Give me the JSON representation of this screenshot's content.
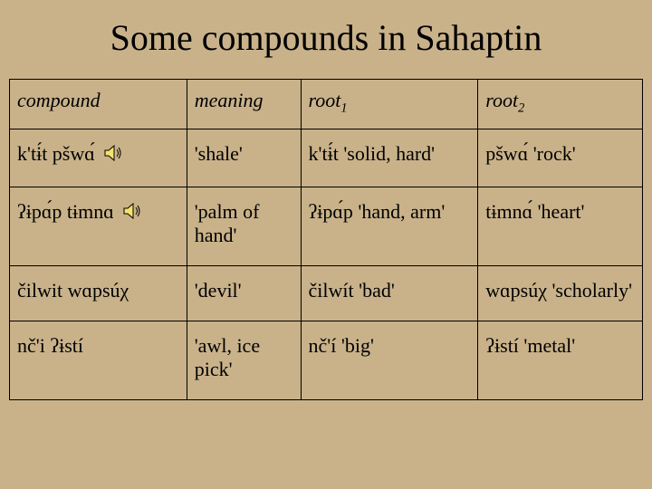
{
  "title": "Some compounds in Sahaptin",
  "headers": {
    "compound": "compound",
    "meaning": "meaning",
    "root1_prefix": "root",
    "root1_sub": "1",
    "root2_prefix": "root",
    "root2_sub": "2"
  },
  "rows": [
    {
      "compound": "k'tɨ́t pšwɑ́",
      "audio": true,
      "meaning": "'shale'",
      "root1": "k'tɨ́t 'solid, hard'",
      "root2": "pšwɑ́ 'rock'"
    },
    {
      "compound": "ʔɨpɑ́p tɨmnɑ",
      "audio": true,
      "meaning": "'palm of hand'",
      "root1": "ʔɨpɑ́p 'hand, arm'",
      "root2": "tɨmnɑ́ 'heart'"
    },
    {
      "compound": "čilwit wɑpsúχ",
      "audio": false,
      "meaning": "'devil'",
      "root1": "čilwít 'bad'",
      "root2": "wɑpsúχ 'scholarly'"
    },
    {
      "compound": "nč'i ʔɨstí",
      "audio": false,
      "meaning": "'awl, ice pick'",
      "root1": "nč'í 'big'",
      "root2": "ʔɨstí 'metal'"
    }
  ],
  "colors": {
    "background": "#c9b28a",
    "border": "#000000",
    "speaker_fill": "#f5e26b",
    "speaker_stroke": "#000000"
  }
}
